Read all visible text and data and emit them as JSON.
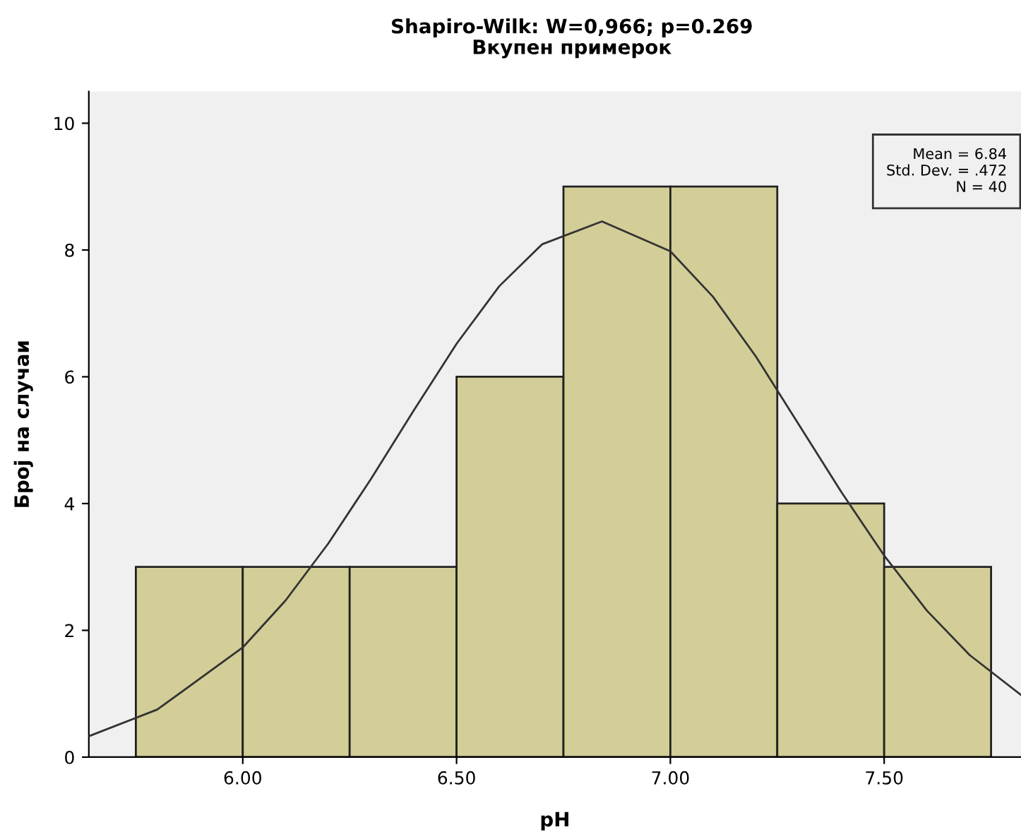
{
  "chart_data": {
    "type": "histogram",
    "title": "Shapiro-Wilk: W=0,966; p=0.269",
    "subtitle": "Вкупен примерок",
    "xlabel": "pH",
    "ylabel": "Број на случаи",
    "series": [
      {
        "color": "#d3ce97",
        "bins": [
          5.75,
          6.0,
          6.25,
          6.5,
          6.75,
          7.0,
          7.25,
          7.5,
          7.75
        ],
        "values": [
          3,
          3,
          3,
          6,
          9,
          9,
          4,
          3
        ]
      },
      {
        "type": "line",
        "color": "#333333",
        "x": [
          5.64,
          5.8,
          6.0,
          6.1,
          6.2,
          6.3,
          6.4,
          6.5,
          6.6,
          6.7,
          6.84,
          7.0,
          7.1,
          7.2,
          7.3,
          7.4,
          7.5,
          7.6,
          7.7,
          7.82
        ],
        "values": [
          0.33,
          0.75,
          1.73,
          2.47,
          3.37,
          4.39,
          5.47,
          6.52,
          7.43,
          8.09,
          8.45,
          7.98,
          7.26,
          6.32,
          5.25,
          4.18,
          3.18,
          2.31,
          1.61,
          0.98
        ]
      }
    ],
    "annotations": [
      "Mean = 6.84\nStd. Dev. = .472\nN = 40"
    ],
    "xlim": [
      5.64,
      7.82
    ],
    "xticks": [
      {
        "value": 6.0,
        "label": "6.00"
      },
      {
        "value": 6.5,
        "label": "6.50"
      },
      {
        "value": 7.0,
        "label": "7.00"
      },
      {
        "value": 7.5,
        "label": "7.50"
      }
    ],
    "ylim": [
      0,
      10.5
    ],
    "yticks": [
      0,
      2,
      4,
      6,
      8,
      10
    ],
    "grid": false
  }
}
